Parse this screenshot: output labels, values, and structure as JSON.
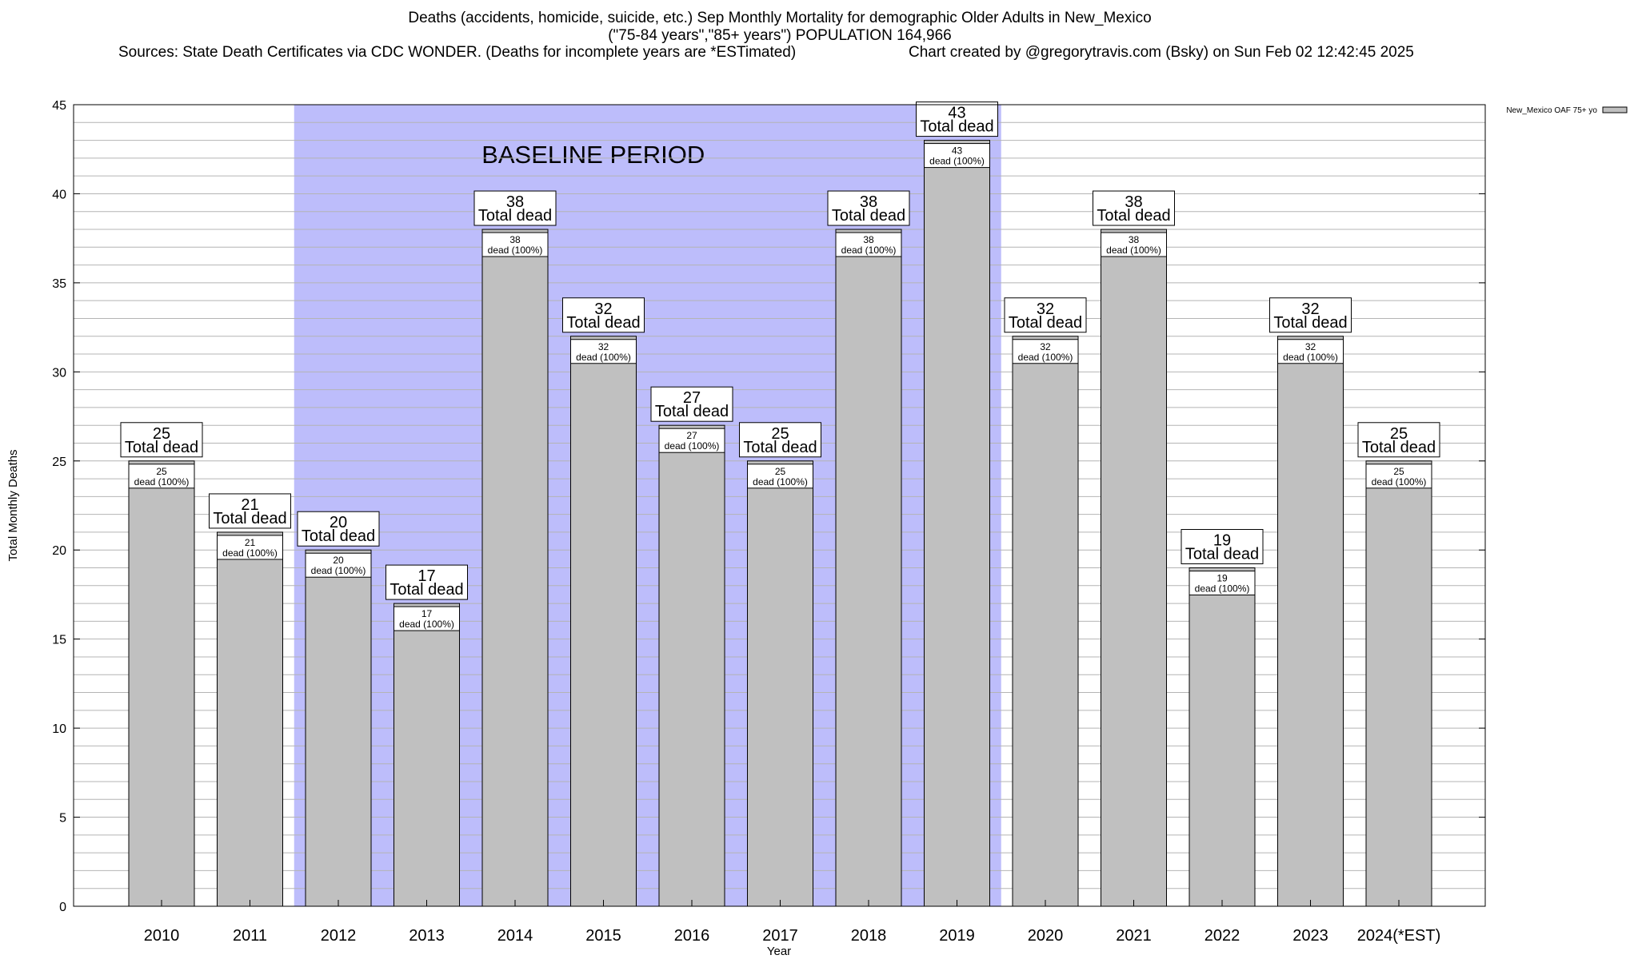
{
  "title": {
    "line1": "Deaths (accidents, homicide, suicide, etc.) Sep Monthly Mortality for demographic Older Adults in New_Mexico",
    "line2": "(\"75-84 years\",\"85+ years\") POPULATION 164,966",
    "line3_left": "Sources: State Death Certificates via CDC WONDER. (Deaths for incomplete years are *ESTimated)",
    "line3_right": "Chart created by @gregorytravis.com (Bsky) on Sun Feb 02 12:42:45 2025"
  },
  "chart_data": {
    "type": "bar",
    "ylabel": "Total Monthly Deaths",
    "xlabel": "Year",
    "ylim": [
      0,
      45
    ],
    "yticks": [
      0,
      5,
      10,
      15,
      20,
      25,
      30,
      35,
      40,
      45
    ],
    "minor_grid_step": 1,
    "grid": true,
    "legend": {
      "position": "top-right",
      "label": "New_Mexico OAF 75+ yo"
    },
    "baseline": {
      "label": "BASELINE PERIOD",
      "from": "2012",
      "to": "2019",
      "color": "#bdbdfb"
    },
    "categories": [
      "2010",
      "2011",
      "2012",
      "2013",
      "2014",
      "2015",
      "2016",
      "2017",
      "2018",
      "2019",
      "2020",
      "2021",
      "2022",
      "2023",
      "2024(*EST)"
    ],
    "series": [
      {
        "name": "New_Mexico OAF 75+ yo",
        "color": "#c0c0c0",
        "values": [
          25,
          21,
          20,
          17,
          38,
          32,
          27,
          25,
          38,
          43,
          32,
          38,
          19,
          32,
          25
        ]
      }
    ],
    "total_label_suffix": "Total dead",
    "inner_label_suffix": "dead (100%)"
  }
}
